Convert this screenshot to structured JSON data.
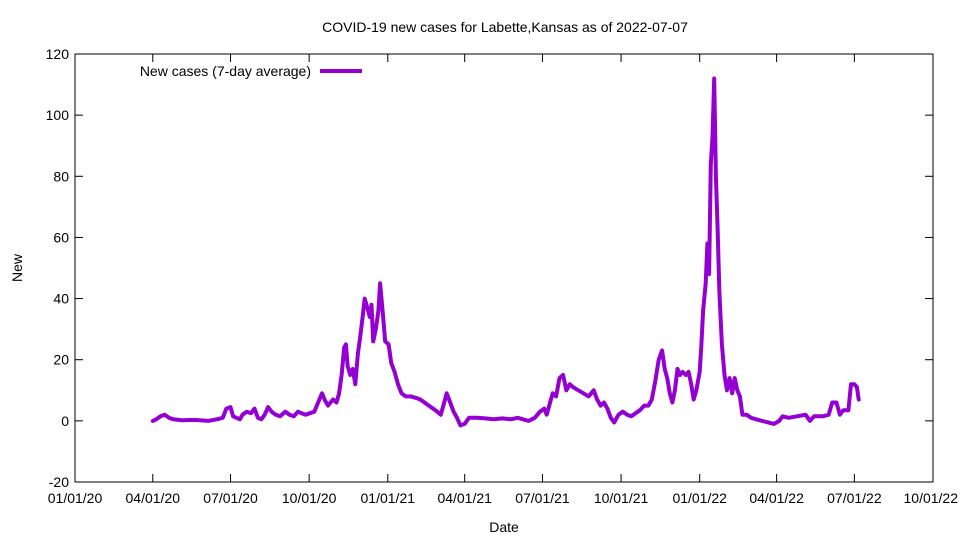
{
  "chart_data": {
    "type": "line",
    "title": "COVID-19 new cases for Labette,Kansas as of 2022-07-07",
    "xlabel": "Date",
    "ylabel": "New",
    "ylim": [
      -20,
      120
    ],
    "yticks": [
      -20,
      0,
      20,
      40,
      60,
      80,
      100,
      120
    ],
    "xlim": [
      "2020-01-01",
      "2022-10-01"
    ],
    "xticks": [
      {
        "date": "2020-01-01",
        "label": "01/01/20"
      },
      {
        "date": "2020-04-01",
        "label": "04/01/20"
      },
      {
        "date": "2020-07-01",
        "label": "07/01/20"
      },
      {
        "date": "2020-10-01",
        "label": "10/01/20"
      },
      {
        "date": "2021-01-01",
        "label": "01/01/21"
      },
      {
        "date": "2021-04-01",
        "label": "04/01/21"
      },
      {
        "date": "2021-07-01",
        "label": "07/01/21"
      },
      {
        "date": "2021-10-01",
        "label": "10/01/21"
      },
      {
        "date": "2022-01-01",
        "label": "01/01/22"
      },
      {
        "date": "2022-04-01",
        "label": "04/01/22"
      },
      {
        "date": "2022-07-01",
        "label": "07/01/22"
      },
      {
        "date": "2022-10-01",
        "label": "10/01/22"
      }
    ],
    "grid": false,
    "legend_position": "top-left",
    "series": [
      {
        "name": "New cases (7-day average)",
        "color": "#9400d3",
        "points": [
          [
            "2020-04-01",
            0
          ],
          [
            "2020-04-05",
            0.5
          ],
          [
            "2020-04-10",
            1.5
          ],
          [
            "2020-04-15",
            2
          ],
          [
            "2020-04-20",
            1
          ],
          [
            "2020-04-25",
            0.5
          ],
          [
            "2020-05-05",
            0.2
          ],
          [
            "2020-05-20",
            0.3
          ],
          [
            "2020-06-05",
            0
          ],
          [
            "2020-06-15",
            0.5
          ],
          [
            "2020-06-22",
            1
          ],
          [
            "2020-06-26",
            4
          ],
          [
            "2020-07-01",
            4.5
          ],
          [
            "2020-07-04",
            1.5
          ],
          [
            "2020-07-08",
            1
          ],
          [
            "2020-07-12",
            0.5
          ],
          [
            "2020-07-15",
            2
          ],
          [
            "2020-07-20",
            3
          ],
          [
            "2020-07-25",
            2.5
          ],
          [
            "2020-07-29",
            4
          ],
          [
            "2020-08-02",
            1
          ],
          [
            "2020-08-06",
            0.5
          ],
          [
            "2020-08-10",
            2
          ],
          [
            "2020-08-14",
            4.5
          ],
          [
            "2020-08-18",
            3
          ],
          [
            "2020-08-23",
            2
          ],
          [
            "2020-08-28",
            1.5
          ],
          [
            "2020-09-03",
            3
          ],
          [
            "2020-09-08",
            2
          ],
          [
            "2020-09-13",
            1.5
          ],
          [
            "2020-09-18",
            3
          ],
          [
            "2020-09-22",
            2.5
          ],
          [
            "2020-09-27",
            2
          ],
          [
            "2020-10-02",
            2.5
          ],
          [
            "2020-10-07",
            3
          ],
          [
            "2020-10-10",
            5
          ],
          [
            "2020-10-13",
            7
          ],
          [
            "2020-10-16",
            9
          ],
          [
            "2020-10-19",
            7
          ],
          [
            "2020-10-23",
            5
          ],
          [
            "2020-10-26",
            6
          ],
          [
            "2020-10-29",
            7
          ],
          [
            "2020-11-02",
            6
          ],
          [
            "2020-11-05",
            9
          ],
          [
            "2020-11-08",
            15
          ],
          [
            "2020-11-11",
            24
          ],
          [
            "2020-11-13",
            25
          ],
          [
            "2020-11-15",
            18
          ],
          [
            "2020-11-18",
            15
          ],
          [
            "2020-11-21",
            17
          ],
          [
            "2020-11-24",
            12
          ],
          [
            "2020-11-27",
            22
          ],
          [
            "2020-11-30",
            28
          ],
          [
            "2020-12-03",
            35
          ],
          [
            "2020-12-05",
            40
          ],
          [
            "2020-12-08",
            37
          ],
          [
            "2020-12-11",
            34
          ],
          [
            "2020-12-13",
            38
          ],
          [
            "2020-12-15",
            26
          ],
          [
            "2020-12-18",
            30
          ],
          [
            "2020-12-21",
            36
          ],
          [
            "2020-12-23",
            45
          ],
          [
            "2020-12-26",
            36
          ],
          [
            "2020-12-29",
            26
          ],
          [
            "2021-01-02",
            25
          ],
          [
            "2021-01-05",
            19
          ],
          [
            "2021-01-09",
            16
          ],
          [
            "2021-01-13",
            12
          ],
          [
            "2021-01-17",
            9
          ],
          [
            "2021-01-22",
            8
          ],
          [
            "2021-01-28",
            8
          ],
          [
            "2021-02-03",
            7.5
          ],
          [
            "2021-02-08",
            7
          ],
          [
            "2021-02-13",
            6
          ],
          [
            "2021-02-18",
            5
          ],
          [
            "2021-02-23",
            4
          ],
          [
            "2021-02-28",
            3
          ],
          [
            "2021-03-04",
            2
          ],
          [
            "2021-03-08",
            6
          ],
          [
            "2021-03-11",
            9
          ],
          [
            "2021-03-15",
            6
          ],
          [
            "2021-03-19",
            3
          ],
          [
            "2021-03-23",
            1
          ],
          [
            "2021-03-27",
            -1.5
          ],
          [
            "2021-04-01",
            -1
          ],
          [
            "2021-04-06",
            1
          ],
          [
            "2021-04-15",
            1
          ],
          [
            "2021-04-25",
            0.8
          ],
          [
            "2021-05-05",
            0.5
          ],
          [
            "2021-05-15",
            0.8
          ],
          [
            "2021-05-25",
            0.5
          ],
          [
            "2021-06-02",
            1
          ],
          [
            "2021-06-08",
            0.5
          ],
          [
            "2021-06-15",
            0
          ],
          [
            "2021-06-22",
            1
          ],
          [
            "2021-06-28",
            3
          ],
          [
            "2021-07-03",
            4
          ],
          [
            "2021-07-06",
            2
          ],
          [
            "2021-07-10",
            6
          ],
          [
            "2021-07-13",
            9
          ],
          [
            "2021-07-17",
            8
          ],
          [
            "2021-07-21",
            14
          ],
          [
            "2021-07-25",
            15
          ],
          [
            "2021-07-29",
            10
          ],
          [
            "2021-08-02",
            12
          ],
          [
            "2021-08-06",
            11
          ],
          [
            "2021-08-12",
            10
          ],
          [
            "2021-08-18",
            9
          ],
          [
            "2021-08-24",
            8
          ],
          [
            "2021-08-30",
            10
          ],
          [
            "2021-09-03",
            7
          ],
          [
            "2021-09-07",
            5
          ],
          [
            "2021-09-11",
            6
          ],
          [
            "2021-09-15",
            4
          ],
          [
            "2021-09-19",
            1
          ],
          [
            "2021-09-23",
            -0.5
          ],
          [
            "2021-09-28",
            2
          ],
          [
            "2021-10-03",
            3
          ],
          [
            "2021-10-08",
            2
          ],
          [
            "2021-10-13",
            1.5
          ],
          [
            "2021-10-18",
            2.5
          ],
          [
            "2021-10-23",
            3.5
          ],
          [
            "2021-10-28",
            5
          ],
          [
            "2021-11-02",
            5
          ],
          [
            "2021-11-06",
            7
          ],
          [
            "2021-11-10",
            13
          ],
          [
            "2021-11-14",
            20
          ],
          [
            "2021-11-18",
            23
          ],
          [
            "2021-11-21",
            17
          ],
          [
            "2021-11-24",
            14
          ],
          [
            "2021-11-27",
            9
          ],
          [
            "2021-11-30",
            6
          ],
          [
            "2021-12-03",
            10
          ],
          [
            "2021-12-06",
            17
          ],
          [
            "2021-12-09",
            15
          ],
          [
            "2021-12-12",
            16
          ],
          [
            "2021-12-16",
            15
          ],
          [
            "2021-12-19",
            16
          ],
          [
            "2021-12-22",
            12
          ],
          [
            "2021-12-25",
            7
          ],
          [
            "2021-12-28",
            10
          ],
          [
            "2022-01-01",
            16
          ],
          [
            "2022-01-03",
            25
          ],
          [
            "2022-01-05",
            36
          ],
          [
            "2022-01-08",
            45
          ],
          [
            "2022-01-10",
            58
          ],
          [
            "2022-01-12",
            48
          ],
          [
            "2022-01-14",
            84
          ],
          [
            "2022-01-16",
            93
          ],
          [
            "2022-01-18",
            112
          ],
          [
            "2022-01-20",
            80
          ],
          [
            "2022-01-22",
            63
          ],
          [
            "2022-01-24",
            42
          ],
          [
            "2022-01-27",
            25
          ],
          [
            "2022-01-30",
            15
          ],
          [
            "2022-02-02",
            10
          ],
          [
            "2022-02-05",
            14
          ],
          [
            "2022-02-08",
            9
          ],
          [
            "2022-02-11",
            14
          ],
          [
            "2022-02-14",
            10
          ],
          [
            "2022-02-17",
            8
          ],
          [
            "2022-02-20",
            2
          ],
          [
            "2022-02-25",
            2
          ],
          [
            "2022-03-02",
            1
          ],
          [
            "2022-03-08",
            0.5
          ],
          [
            "2022-03-15",
            0
          ],
          [
            "2022-03-22",
            -0.5
          ],
          [
            "2022-03-29",
            -1
          ],
          [
            "2022-04-04",
            0
          ],
          [
            "2022-04-08",
            1.5
          ],
          [
            "2022-04-15",
            1
          ],
          [
            "2022-04-25",
            1.5
          ],
          [
            "2022-05-05",
            2
          ],
          [
            "2022-05-10",
            0
          ],
          [
            "2022-05-15",
            1.5
          ],
          [
            "2022-05-25",
            1.5
          ],
          [
            "2022-06-01",
            2
          ],
          [
            "2022-06-05",
            6
          ],
          [
            "2022-06-10",
            6
          ],
          [
            "2022-06-14",
            2
          ],
          [
            "2022-06-18",
            3.5
          ],
          [
            "2022-06-24",
            3.5
          ],
          [
            "2022-06-27",
            12
          ],
          [
            "2022-07-01",
            12
          ],
          [
            "2022-07-04",
            11
          ],
          [
            "2022-07-06",
            7
          ]
        ]
      }
    ]
  }
}
